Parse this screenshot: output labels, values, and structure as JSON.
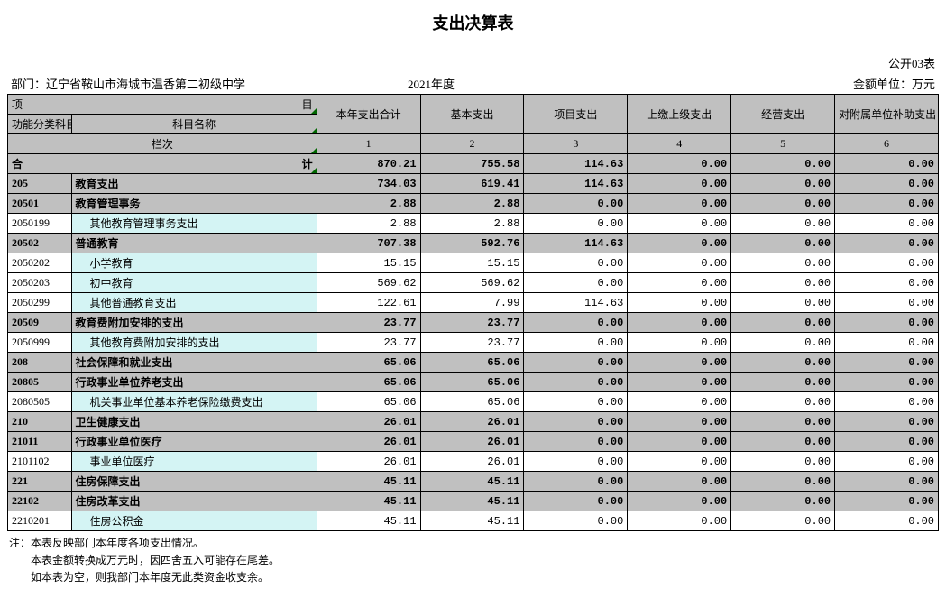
{
  "title": "支出决算表",
  "form_no": "公开03表",
  "dept_label": "部门：",
  "dept_name": "辽宁省鞍山市海城市温香第二初级中学",
  "year": "2021年度",
  "unit": "金额单位：万元",
  "header": {
    "proj": "项",
    "mu": "目",
    "code": "功能分类科目编码",
    "name": "科目名称",
    "lanci": "栏次",
    "cols": [
      "本年支出合计",
      "基本支出",
      "项目支出",
      "上缴上级支出",
      "经营支出",
      "对附属单位补助支出"
    ],
    "col_nums": [
      "1",
      "2",
      "3",
      "4",
      "5",
      "6"
    ]
  },
  "total_label": "合",
  "total_label2": "计",
  "rows": [
    {
      "code": "",
      "name": "",
      "v": [
        "870.21",
        "755.58",
        "114.63",
        "0.00",
        "0.00",
        "0.00"
      ],
      "bold": true,
      "is_total": true
    },
    {
      "code": "205",
      "name": "教育支出",
      "v": [
        "734.03",
        "619.41",
        "114.63",
        "0.00",
        "0.00",
        "0.00"
      ],
      "bold": true
    },
    {
      "code": "20501",
      "name": "教育管理事务",
      "v": [
        "2.88",
        "2.88",
        "0.00",
        "0.00",
        "0.00",
        "0.00"
      ],
      "bold": true
    },
    {
      "code": "2050199",
      "name": "其他教育管理事务支出",
      "v": [
        "2.88",
        "2.88",
        "0.00",
        "0.00",
        "0.00",
        "0.00"
      ],
      "bold": false,
      "indent": true
    },
    {
      "code": "20502",
      "name": "普通教育",
      "v": [
        "707.38",
        "592.76",
        "114.63",
        "0.00",
        "0.00",
        "0.00"
      ],
      "bold": true
    },
    {
      "code": "2050202",
      "name": "小学教育",
      "v": [
        "15.15",
        "15.15",
        "0.00",
        "0.00",
        "0.00",
        "0.00"
      ],
      "bold": false,
      "indent": true
    },
    {
      "code": "2050203",
      "name": "初中教育",
      "v": [
        "569.62",
        "569.62",
        "0.00",
        "0.00",
        "0.00",
        "0.00"
      ],
      "bold": false,
      "indent": true
    },
    {
      "code": "2050299",
      "name": "其他普通教育支出",
      "v": [
        "122.61",
        "7.99",
        "114.63",
        "0.00",
        "0.00",
        "0.00"
      ],
      "bold": false,
      "indent": true
    },
    {
      "code": "20509",
      "name": "教育费附加安排的支出",
      "v": [
        "23.77",
        "23.77",
        "0.00",
        "0.00",
        "0.00",
        "0.00"
      ],
      "bold": true
    },
    {
      "code": "2050999",
      "name": "其他教育费附加安排的支出",
      "v": [
        "23.77",
        "23.77",
        "0.00",
        "0.00",
        "0.00",
        "0.00"
      ],
      "bold": false,
      "indent": true
    },
    {
      "code": "208",
      "name": "社会保障和就业支出",
      "v": [
        "65.06",
        "65.06",
        "0.00",
        "0.00",
        "0.00",
        "0.00"
      ],
      "bold": true
    },
    {
      "code": "20805",
      "name": "行政事业单位养老支出",
      "v": [
        "65.06",
        "65.06",
        "0.00",
        "0.00",
        "0.00",
        "0.00"
      ],
      "bold": true
    },
    {
      "code": "2080505",
      "name": "机关事业单位基本养老保险缴费支出",
      "v": [
        "65.06",
        "65.06",
        "0.00",
        "0.00",
        "0.00",
        "0.00"
      ],
      "bold": false,
      "indent": true
    },
    {
      "code": "210",
      "name": "卫生健康支出",
      "v": [
        "26.01",
        "26.01",
        "0.00",
        "0.00",
        "0.00",
        "0.00"
      ],
      "bold": true
    },
    {
      "code": "21011",
      "name": "行政事业单位医疗",
      "v": [
        "26.01",
        "26.01",
        "0.00",
        "0.00",
        "0.00",
        "0.00"
      ],
      "bold": true
    },
    {
      "code": "2101102",
      "name": "事业单位医疗",
      "v": [
        "26.01",
        "26.01",
        "0.00",
        "0.00",
        "0.00",
        "0.00"
      ],
      "bold": false,
      "indent": true
    },
    {
      "code": "221",
      "name": "住房保障支出",
      "v": [
        "45.11",
        "45.11",
        "0.00",
        "0.00",
        "0.00",
        "0.00"
      ],
      "bold": true
    },
    {
      "code": "22102",
      "name": "住房改革支出",
      "v": [
        "45.11",
        "45.11",
        "0.00",
        "0.00",
        "0.00",
        "0.00"
      ],
      "bold": true
    },
    {
      "code": "2210201",
      "name": "住房公积金",
      "v": [
        "45.11",
        "45.11",
        "0.00",
        "0.00",
        "0.00",
        "0.00"
      ],
      "bold": false,
      "indent": true
    }
  ],
  "notes": [
    "注：本表反映部门本年度各项支出情况。",
    "　　本表金额转换成万元时，因四舍五入可能存在尾差。",
    "　　如本表为空，则我部门本年度无此类资金收支余。"
  ]
}
